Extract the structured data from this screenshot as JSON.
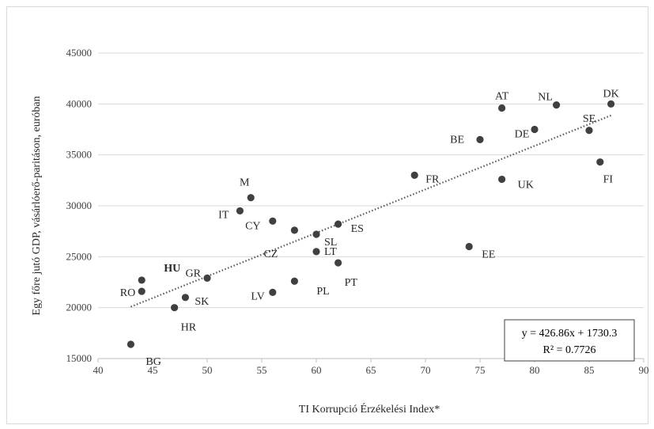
{
  "chart_data": {
    "type": "scatter",
    "title": "",
    "xlabel": "TI Korrupció Érzékelési Index*",
    "ylabel": "Egy főre jutó GDP, vásárlóerő-paritáson, euróban",
    "xlim": [
      40,
      90
    ],
    "ylim": [
      15000,
      45000
    ],
    "xticks": [
      "40",
      "45",
      "50",
      "55",
      "60",
      "65",
      "70",
      "75",
      "80",
      "85",
      "90"
    ],
    "yticks": [
      "15000",
      "20000",
      "25000",
      "30000",
      "35000",
      "40000",
      "45000"
    ],
    "grid": "horizontal",
    "points": [
      {
        "label": "DK",
        "x": 87,
        "y": 40000
      },
      {
        "label": "NL",
        "x": 82,
        "y": 39900
      },
      {
        "label": "AT",
        "x": 77,
        "y": 39600
      },
      {
        "label": "DE",
        "x": 80,
        "y": 37500
      },
      {
        "label": "SE",
        "x": 85,
        "y": 37400
      },
      {
        "label": "BE",
        "x": 75,
        "y": 36500
      },
      {
        "label": "FI",
        "x": 86,
        "y": 34300
      },
      {
        "label": "FR",
        "x": 69,
        "y": 33000
      },
      {
        "label": "UK",
        "x": 77,
        "y": 32600
      },
      {
        "label": "M",
        "x": 54,
        "y": 30800
      },
      {
        "label": "IT",
        "x": 53,
        "y": 29500
      },
      {
        "label": "CY",
        "x": 56,
        "y": 28500
      },
      {
        "label": "ES",
        "x": 62,
        "y": 28200
      },
      {
        "label": "CZ",
        "x": 58,
        "y": 27600
      },
      {
        "label": "SL",
        "x": 60,
        "y": 27200
      },
      {
        "label": "EE",
        "x": 74,
        "y": 26000
      },
      {
        "label": "LT",
        "x": 60,
        "y": 25500
      },
      {
        "label": "PT",
        "x": 62,
        "y": 24400
      },
      {
        "label": "GR",
        "x": 50,
        "y": 22900
      },
      {
        "label": "HU",
        "x": 44,
        "y": 22700,
        "bold": true
      },
      {
        "label": "PL",
        "x": 58,
        "y": 22600
      },
      {
        "label": "RO",
        "x": 44,
        "y": 21600
      },
      {
        "label": "LV",
        "x": 56,
        "y": 21500
      },
      {
        "label": "SK",
        "x": 48,
        "y": 21000
      },
      {
        "label": "HR",
        "x": 47,
        "y": 20000
      },
      {
        "label": "BG",
        "x": 43,
        "y": 16400
      }
    ],
    "trendline": {
      "type": "linear",
      "slope": 426.86,
      "intercept": 1730.3,
      "x_range": [
        43,
        87
      ],
      "style": "dotted",
      "equation_text": "y = 426.86x + 1730.3",
      "r2_text": "R² = 0.7726"
    },
    "colors": {
      "points": "#404040",
      "trendline": "#595959",
      "grid": "#d9d9d9"
    }
  }
}
